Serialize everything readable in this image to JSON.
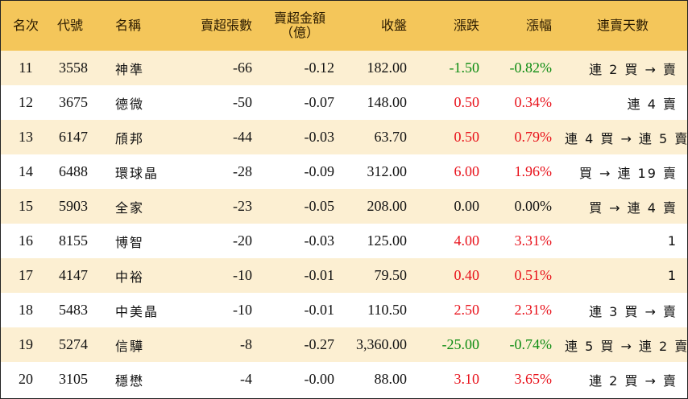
{
  "chart_data": {
    "type": "table",
    "columns": [
      "名次",
      "代號",
      "名稱",
      "賣超張數",
      "賣超金額\n（億）",
      "收盤",
      "漲跌",
      "漲幅",
      "連賣天數"
    ],
    "rows": [
      {
        "rank": "11",
        "code": "3558",
        "name": "神準",
        "lots": "-66",
        "amount": "-0.12",
        "close": "182.00",
        "change": "-1.50",
        "pct": "-0.82%",
        "trend": "green",
        "days": "連 2 買 → 賣"
      },
      {
        "rank": "12",
        "code": "3675",
        "name": "德微",
        "lots": "-50",
        "amount": "-0.07",
        "close": "148.00",
        "change": "0.50",
        "pct": "0.34%",
        "trend": "red",
        "days": "連 4 賣"
      },
      {
        "rank": "13",
        "code": "6147",
        "name": "頎邦",
        "lots": "-44",
        "amount": "-0.03",
        "close": "63.70",
        "change": "0.50",
        "pct": "0.79%",
        "trend": "red",
        "days": "連 4 買 → 連 5 賣"
      },
      {
        "rank": "14",
        "code": "6488",
        "name": "環球晶",
        "lots": "-28",
        "amount": "-0.09",
        "close": "312.00",
        "change": "6.00",
        "pct": "1.96%",
        "trend": "red",
        "days": "買 → 連 19 賣"
      },
      {
        "rank": "15",
        "code": "5903",
        "name": "全家",
        "lots": "-23",
        "amount": "-0.05",
        "close": "208.00",
        "change": "0.00",
        "pct": "0.00%",
        "trend": "black",
        "days": "買 → 連 4 賣"
      },
      {
        "rank": "16",
        "code": "8155",
        "name": "博智",
        "lots": "-20",
        "amount": "-0.03",
        "close": "125.00",
        "change": "4.00",
        "pct": "3.31%",
        "trend": "red",
        "days": "1"
      },
      {
        "rank": "17",
        "code": "4147",
        "name": "中裕",
        "lots": "-10",
        "amount": "-0.01",
        "close": "79.50",
        "change": "0.40",
        "pct": "0.51%",
        "trend": "red",
        "days": "1"
      },
      {
        "rank": "18",
        "code": "5483",
        "name": "中美晶",
        "lots": "-10",
        "amount": "-0.01",
        "close": "110.50",
        "change": "2.50",
        "pct": "2.31%",
        "trend": "red",
        "days": "連 3 買 → 賣"
      },
      {
        "rank": "19",
        "code": "5274",
        "name": "信驊",
        "lots": "-8",
        "amount": "-0.27",
        "close": "3,360.00",
        "change": "-25.00",
        "pct": "-0.74%",
        "trend": "green",
        "days": "連 5 買 → 連 2 賣"
      },
      {
        "rank": "20",
        "code": "3105",
        "name": "穩懋",
        "lots": "-4",
        "amount": "-0.00",
        "close": "88.00",
        "change": "3.10",
        "pct": "3.65%",
        "trend": "red",
        "days": "連 2 買 → 賣"
      }
    ]
  },
  "colors": {
    "header_bg": "#f4c65a",
    "odd_row_bg": "#fcefd2",
    "up": "#e8121b",
    "down": "#0d8c12"
  }
}
